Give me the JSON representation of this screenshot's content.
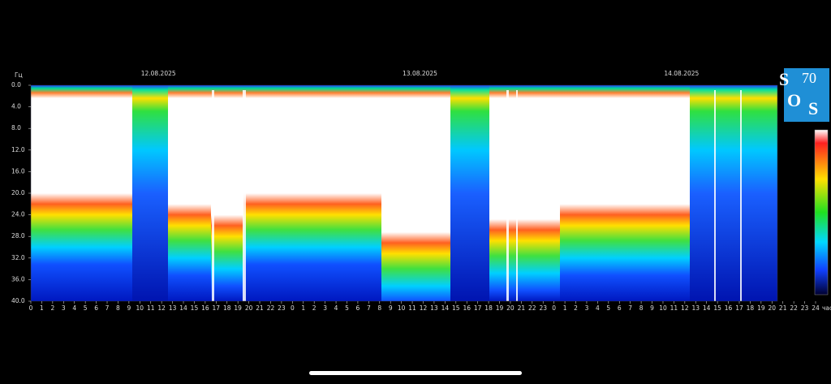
{
  "chart_data": {
    "type": "spectrogram",
    "ylabel": "Гц",
    "xlabel": "час",
    "dates": [
      "12.08.2025",
      "13.08.2025",
      "14.08.2025"
    ],
    "logo": [
      "S",
      "70",
      "O",
      "S"
    ],
    "ylim": [
      0,
      40
    ],
    "yticks": [
      {
        "value": 0,
        "label": "0.0"
      },
      {
        "value": 4,
        "label": "4.0"
      },
      {
        "value": 8,
        "label": "8.0"
      },
      {
        "value": 12,
        "label": "12.0"
      },
      {
        "value": 16,
        "label": "16.0"
      },
      {
        "value": 20,
        "label": "20.0"
      },
      {
        "value": 24,
        "label": "24.0"
      },
      {
        "value": 28,
        "label": "28.0"
      },
      {
        "value": 32,
        "label": "32.0"
      },
      {
        "value": 36,
        "label": "36.0"
      },
      {
        "value": 40,
        "label": "40.0"
      }
    ],
    "xlim": [
      0,
      72
    ],
    "xticks": [
      0,
      1,
      2,
      3,
      4,
      5,
      6,
      7,
      8,
      9,
      10,
      11,
      12,
      13,
      14,
      15,
      16,
      17,
      18,
      19,
      20,
      21,
      22,
      23,
      {
        "value": 24,
        "label": "0"
      },
      {
        "value": 25,
        "label": "1"
      },
      {
        "value": 26,
        "label": "2"
      },
      {
        "value": 27,
        "label": "3"
      },
      {
        "value": 28,
        "label": "4"
      },
      {
        "value": 29,
        "label": "5"
      },
      {
        "value": 30,
        "label": "6"
      },
      {
        "value": 31,
        "label": "7"
      },
      {
        "value": 32,
        "label": "8"
      },
      {
        "value": 33,
        "label": "9"
      },
      {
        "value": 34,
        "label": "10"
      },
      {
        "value": 35,
        "label": "11"
      },
      {
        "value": 36,
        "label": "12"
      },
      {
        "value": 37,
        "label": "13"
      },
      {
        "value": 38,
        "label": "14"
      },
      {
        "value": 39,
        "label": "15"
      },
      {
        "value": 40,
        "label": "16"
      },
      {
        "value": 41,
        "label": "17"
      },
      {
        "value": 42,
        "label": "18"
      },
      {
        "value": 43,
        "label": "19"
      },
      {
        "value": 44,
        "label": "20"
      },
      {
        "value": 45,
        "label": "21"
      },
      {
        "value": 46,
        "label": "22"
      },
      {
        "value": 47,
        "label": "23"
      },
      {
        "value": 48,
        "label": "0"
      },
      {
        "value": 49,
        "label": "1"
      },
      {
        "value": 50,
        "label": "2"
      },
      {
        "value": 51,
        "label": "3"
      },
      {
        "value": 52,
        "label": "4"
      },
      {
        "value": 53,
        "label": "5"
      },
      {
        "value": 54,
        "label": "6"
      },
      {
        "value": 55,
        "label": "7"
      },
      {
        "value": 56,
        "label": "8"
      },
      {
        "value": 57,
        "label": "9"
      },
      {
        "value": 58,
        "label": "10"
      },
      {
        "value": 59,
        "label": "11"
      },
      {
        "value": 60,
        "label": "12"
      },
      {
        "value": 61,
        "label": "13"
      },
      {
        "value": 62,
        "label": "14"
      },
      {
        "value": 63,
        "label": "15"
      },
      {
        "value": 64,
        "label": "16"
      },
      {
        "value": 65,
        "label": "17"
      },
      {
        "value": 66,
        "label": "18"
      },
      {
        "value": 67,
        "label": "19"
      },
      {
        "value": 68,
        "label": "20"
      },
      {
        "value": 69,
        "label": "21"
      },
      {
        "value": 70,
        "label": "22"
      },
      {
        "value": 71,
        "label": "23"
      },
      {
        "value": 72,
        "label": "24"
      }
    ]
  }
}
